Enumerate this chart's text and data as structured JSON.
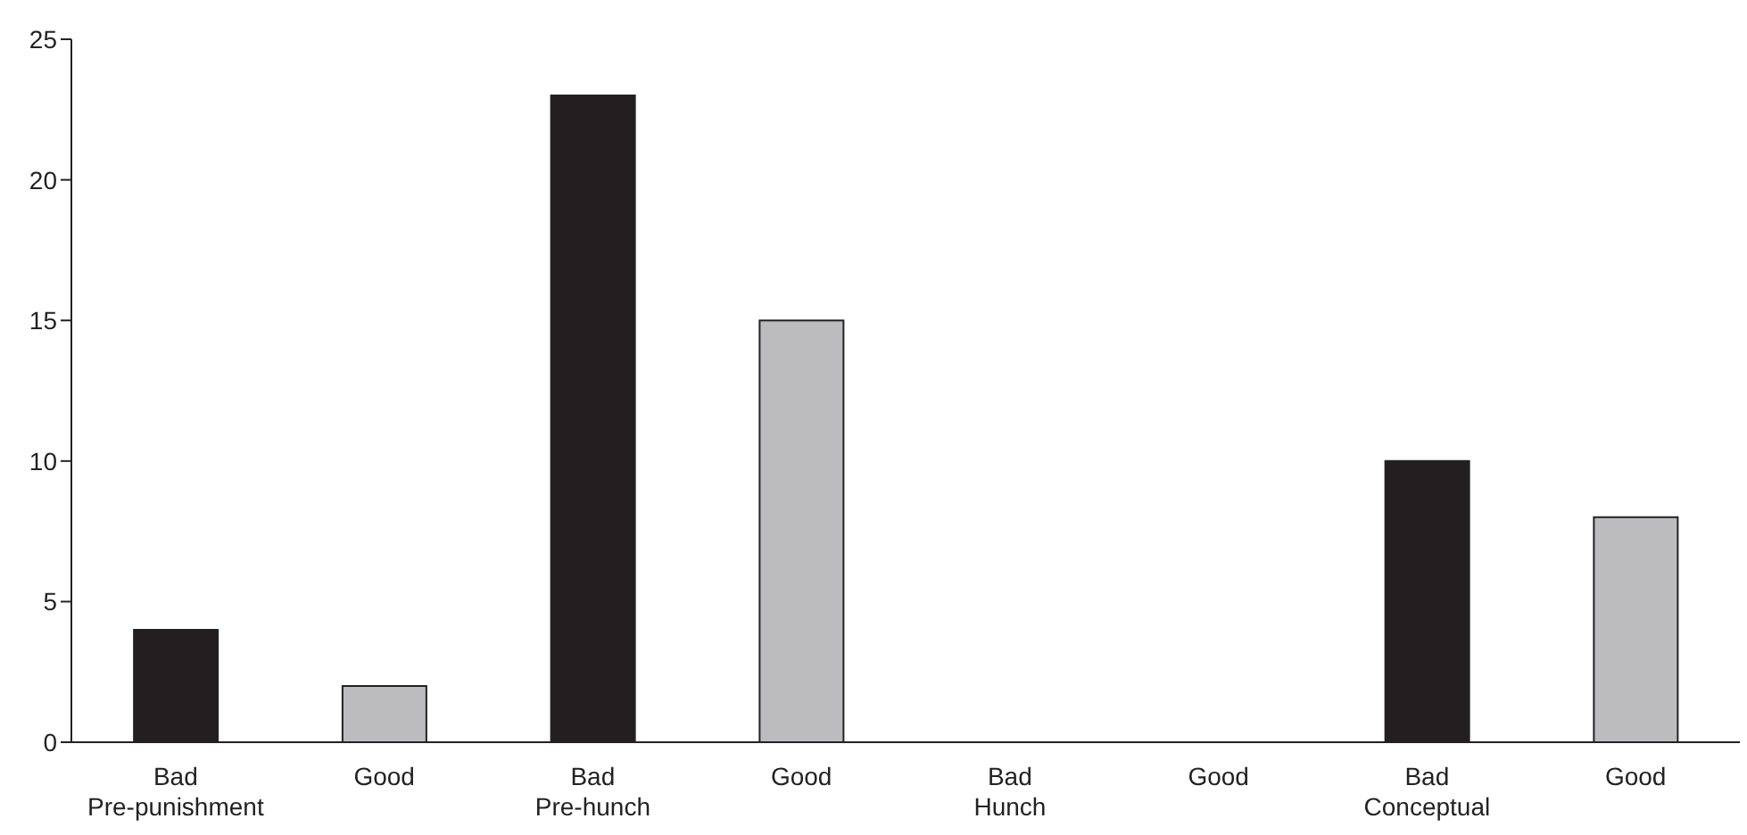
{
  "chart_data": {
    "type": "bar",
    "categories": [
      "Bad\nPre-punishment",
      "Good",
      "Bad\nPre-hunch",
      "Good",
      "Bad\nHunch",
      "Good",
      "Bad\nConceptual",
      "Good"
    ],
    "values": [
      4,
      2,
      23,
      15,
      0,
      0,
      10,
      8
    ],
    "colors": [
      "#231f20",
      "#bcbcbe",
      "#231f20",
      "#bcbcbe",
      "#231f20",
      "#bcbcbe",
      "#231f20",
      "#bcbcbe"
    ],
    "ylim": [
      0,
      25
    ],
    "yticks": [
      0,
      5,
      10,
      15,
      20,
      25
    ],
    "grid": false,
    "legend": false
  }
}
